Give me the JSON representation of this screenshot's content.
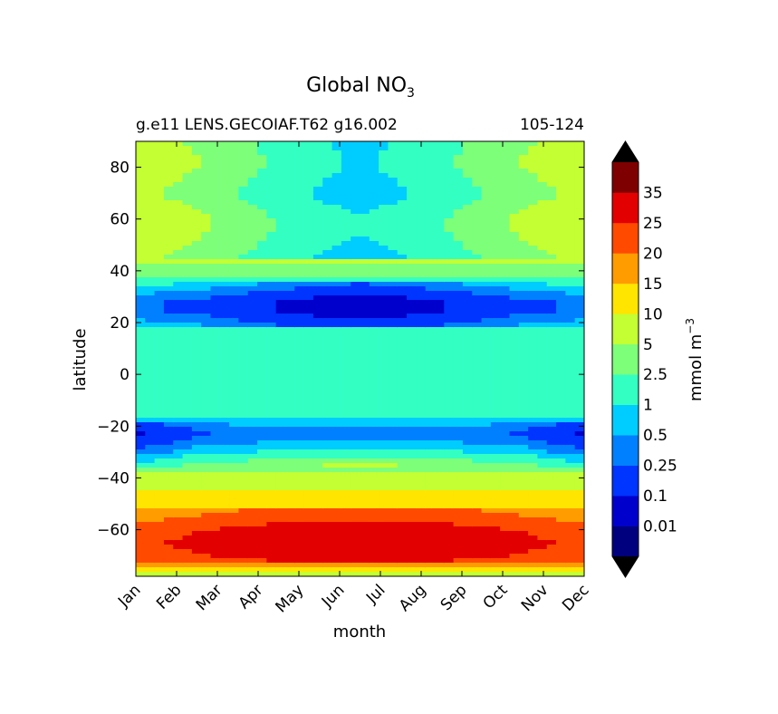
{
  "chart_data": {
    "type": "heatmap",
    "title_main": "Global NO",
    "title_sub": "3",
    "subtitle_left": "g.e11 LENS.GECOIAF.T62 g16.002",
    "subtitle_right": "105-124",
    "xlabel": "month",
    "ylabel": "latitude",
    "x_ticks": [
      "Jan",
      "Feb",
      "Mar",
      "Apr",
      "May",
      "Jun",
      "Jul",
      "Aug",
      "Sep",
      "Oct",
      "Nov",
      "Dec"
    ],
    "xlim": [
      1,
      12
    ],
    "ylim": [
      -78,
      90
    ],
    "y_ticks": [
      80,
      60,
      40,
      20,
      0,
      -20,
      -40,
      -60
    ],
    "y_tick_labels": [
      "80",
      "60",
      "40",
      "20",
      "0",
      "−20",
      "−40",
      "−60"
    ],
    "colorbar": {
      "label_base": "mmol m",
      "label_exp": "−3",
      "levels": [
        0,
        0.01,
        0.1,
        0.25,
        0.5,
        1,
        2.5,
        5,
        10,
        15,
        20,
        25,
        35,
        40
      ],
      "tick_labels": [
        "0.01",
        "0.1",
        "0.25",
        "0.5",
        "1",
        "2.5",
        "5",
        "10",
        "15",
        "20",
        "25",
        "35"
      ],
      "colors": [
        "#00007f",
        "#0000cd",
        "#0034ff",
        "#0080ff",
        "#00cdff",
        "#33ffc3",
        "#7dff7a",
        "#c3ff33",
        "#ffe500",
        "#ff9c00",
        "#ff4a00",
        "#e30000",
        "#7f0000"
      ],
      "under_color": "#000000",
      "over_color": "#000000"
    },
    "field_profile": {
      "latitudes": [
        -78,
        -74,
        -70,
        -65,
        -60,
        -55,
        -50,
        -46,
        -42,
        -38,
        -34,
        -30,
        -26,
        -22,
        -18,
        -14,
        -10,
        -5,
        0,
        5,
        10,
        15,
        20,
        24,
        28,
        32,
        36,
        40,
        44,
        48,
        52,
        56,
        60,
        64,
        68,
        72,
        76,
        80,
        84,
        90
      ],
      "values": [
        6,
        18,
        22,
        24,
        22,
        18,
        14,
        11,
        8,
        5,
        2,
        0.7,
        0.3,
        0.2,
        0.5,
        1.5,
        1.6,
        1.6,
        1.5,
        1.6,
        1.6,
        1.6,
        0.6,
        0.3,
        0.3,
        0.6,
        1.5,
        3.5,
        5.5,
        7,
        8,
        9,
        9,
        8,
        6,
        6,
        7,
        8,
        8,
        7
      ]
    }
  }
}
